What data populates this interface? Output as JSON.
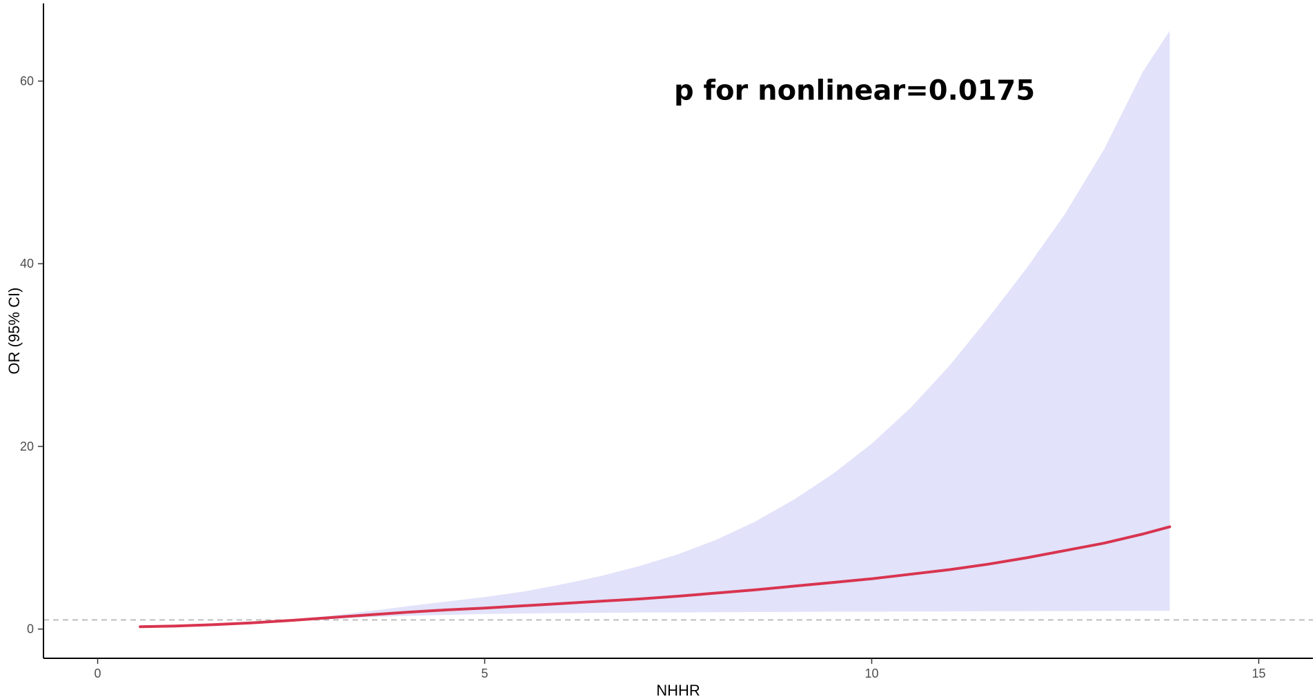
{
  "chart_data": {
    "type": "line",
    "xlabel": "NHHR",
    "ylabel": "OR (95% CI)",
    "xlim": [
      -0.7,
      15.7
    ],
    "ylim": [
      -3.2,
      68.5
    ],
    "x_ticks": [
      0,
      5,
      10,
      15
    ],
    "x_tick_labels": [
      "0",
      "5",
      "10",
      "15"
    ],
    "y_ticks": [
      0,
      20,
      40,
      60
    ],
    "y_tick_labels": [
      "0",
      "20",
      "40",
      "60"
    ],
    "grid": false,
    "reference_line": {
      "y": 1,
      "style": "dashed",
      "color": "#bdbdbd"
    },
    "annotation": {
      "text": "p for nonlinear=0.0175",
      "x": 7.5,
      "y": 59
    },
    "series": [
      {
        "color": "#d8344f",
        "band_color": "#e2e2fa",
        "x": [
          0.55,
          1.0,
          1.5,
          2.0,
          2.5,
          3.0,
          3.5,
          4.0,
          4.5,
          5.0,
          5.5,
          6.0,
          6.5,
          7.0,
          7.5,
          8.0,
          8.5,
          9.0,
          9.5,
          10.0,
          10.5,
          11.0,
          11.5,
          12.0,
          12.5,
          13.0,
          13.5,
          13.85
        ],
        "y": [
          0.25,
          0.33,
          0.48,
          0.68,
          0.95,
          1.25,
          1.55,
          1.85,
          2.1,
          2.3,
          2.55,
          2.8,
          3.05,
          3.3,
          3.6,
          3.95,
          4.3,
          4.7,
          5.1,
          5.5,
          6.0,
          6.5,
          7.1,
          7.8,
          8.6,
          9.4,
          10.4,
          11.2
        ],
        "lower": [
          0.2,
          0.28,
          0.42,
          0.6,
          0.85,
          1.1,
          1.3,
          1.45,
          1.55,
          1.65,
          1.7,
          1.75,
          1.78,
          1.8,
          1.82,
          1.85,
          1.86,
          1.88,
          1.9,
          1.9,
          1.92,
          1.93,
          1.95,
          1.96,
          1.97,
          1.98,
          2.0,
          2.0
        ],
        "upper": [
          0.3,
          0.4,
          0.55,
          0.78,
          1.05,
          1.45,
          1.95,
          2.5,
          3.0,
          3.5,
          4.1,
          4.9,
          5.8,
          6.9,
          8.2,
          9.8,
          11.8,
          14.2,
          17.0,
          20.3,
          24.2,
          28.8,
          34.0,
          39.5,
          45.5,
          52.5,
          61.0,
          65.5
        ]
      }
    ]
  }
}
